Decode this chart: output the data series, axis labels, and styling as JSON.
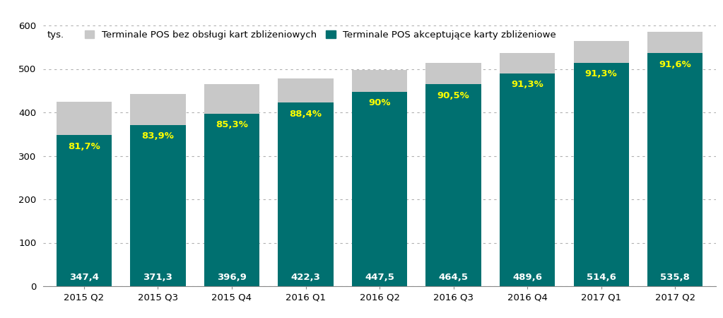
{
  "categories": [
    "2015 Q2",
    "2015 Q3",
    "2015 Q4",
    "2016 Q1",
    "2016 Q2",
    "2016 Q3",
    "2016 Q4",
    "2017 Q1",
    "2017 Q2"
  ],
  "total_values": [
    425.0,
    443.0,
    465.5,
    477.5,
    497.2,
    513.8,
    536.8,
    564.0,
    584.6
  ],
  "contactless_values": [
    347.4,
    371.3,
    396.9,
    422.3,
    447.5,
    464.5,
    489.6,
    514.6,
    535.8
  ],
  "percentages": [
    "81,7%",
    "83,9%",
    "85,3%",
    "88,4%",
    "90%",
    "90,5%",
    "91,3%",
    "91,3%",
    "91,6%"
  ],
  "color_contactless": "#007070",
  "color_non_contactless": "#c8c8c8",
  "color_percentage_text": "#ffff00",
  "color_value_text": "#ffffff",
  "legend_label_non_contactless": "Terminale POS bez obsługi kart zbliżeniowych",
  "legend_label_contactless": "Terminale POS akceptujące karty zbliżeniowe",
  "ylabel": "tys.",
  "ylim": [
    0,
    600
  ],
  "yticks": [
    0,
    100,
    200,
    300,
    400,
    500,
    600
  ],
  "background_color": "#ffffff",
  "grid_color": "#b0b0b0",
  "figsize": [
    10.23,
    4.5
  ],
  "dpi": 100
}
